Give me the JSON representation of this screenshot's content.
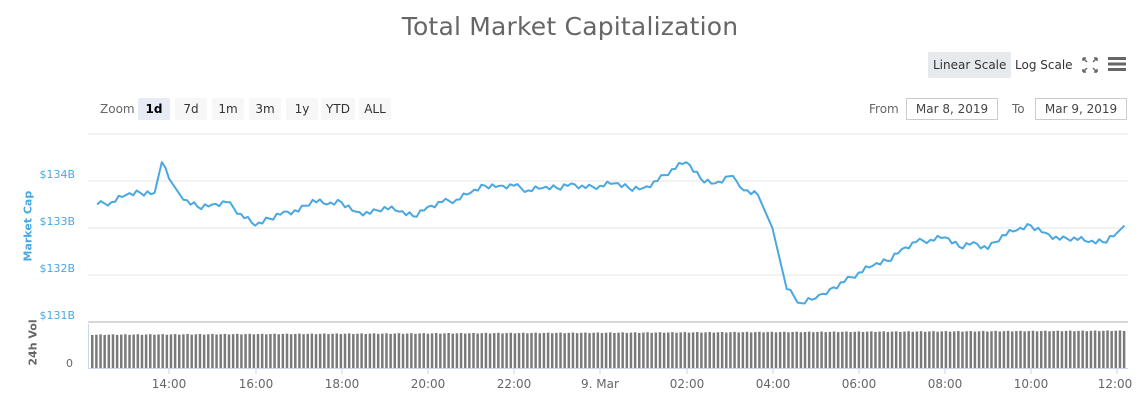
{
  "title": "Total Market Capitalization",
  "toolbar": {
    "linear_scale": "Linear Scale",
    "log_scale": "Log Scale",
    "active_scale": "Linear Scale",
    "icons": [
      "fullscreen-icon",
      "menu-icon"
    ]
  },
  "range_selector": {
    "zoom_label": "Zoom",
    "buttons": [
      "1d",
      "7d",
      "1m",
      "3m",
      "1y",
      "YTD",
      "ALL"
    ],
    "active": "1d",
    "from_label": "From",
    "from_value": "Mar 8, 2019",
    "to_label": "To",
    "to_value": "Mar 9, 2019"
  },
  "colors": {
    "line": "#4aa8e0",
    "volume_bars": "#7a7a7a",
    "grid": "#e6e6e6",
    "axis_label_market_cap": "#4aa8e0"
  },
  "chart_data": {
    "type": "line",
    "title": "Total Market Capitalization",
    "xlabel": "",
    "ylabel": "Market Cap",
    "secondary_ylabel": "24h Vol",
    "y_ticks": [
      "$131B",
      "$132B",
      "$133B",
      "$134B"
    ],
    "ylim": [
      131,
      134.6
    ],
    "y_unit": "USD billions",
    "x_ticks": [
      "14:00",
      "16:00",
      "18:00",
      "20:00",
      "22:00",
      "9. Mar",
      "02:00",
      "04:00",
      "06:00",
      "08:00",
      "10:00",
      "12:00"
    ],
    "volume_y_ticks": [
      "0"
    ],
    "grid": true,
    "legend": "none",
    "series": [
      {
        "name": "Market Cap",
        "x": [
          "12:20",
          "12:40",
          "13:00",
          "13:20",
          "13:40",
          "13:50",
          "14:00",
          "14:20",
          "14:40",
          "15:00",
          "15:20",
          "15:40",
          "16:00",
          "16:20",
          "16:40",
          "17:00",
          "17:20",
          "17:40",
          "18:00",
          "18:20",
          "18:40",
          "19:00",
          "19:20",
          "19:40",
          "20:00",
          "20:20",
          "20:40",
          "21:00",
          "21:20",
          "21:40",
          "22:00",
          "22:20",
          "22:40",
          "23:00",
          "23:20",
          "23:40",
          "00:00",
          "00:20",
          "00:40",
          "01:00",
          "01:20",
          "01:40",
          "02:00",
          "02:20",
          "02:40",
          "03:00",
          "03:10",
          "03:20",
          "03:40",
          "04:00",
          "04:20",
          "04:40",
          "05:00",
          "05:10",
          "05:20",
          "05:40",
          "06:00",
          "06:20",
          "06:40",
          "07:00",
          "07:20",
          "07:40",
          "08:00",
          "08:20",
          "08:40",
          "09:00",
          "09:20",
          "09:40",
          "10:00",
          "10:20",
          "10:40",
          "11:00",
          "11:20",
          "11:40",
          "12:00",
          "12:10"
        ],
        "values": [
          133.5,
          133.55,
          133.7,
          133.75,
          133.75,
          134.4,
          134.05,
          133.6,
          133.45,
          133.5,
          133.55,
          133.3,
          133.05,
          133.2,
          133.35,
          133.35,
          133.6,
          133.5,
          133.55,
          133.35,
          133.3,
          133.45,
          133.35,
          133.25,
          133.45,
          133.55,
          133.6,
          133.75,
          133.9,
          133.9,
          133.9,
          133.8,
          133.85,
          133.85,
          133.95,
          133.85,
          133.9,
          133.95,
          133.85,
          133.85,
          134.0,
          134.25,
          134.4,
          134.05,
          133.95,
          134.1,
          134.0,
          133.8,
          133.7,
          133.0,
          131.7,
          131.4,
          131.5,
          131.6,
          131.7,
          131.85,
          132.05,
          132.2,
          132.3,
          132.55,
          132.7,
          132.75,
          132.8,
          132.6,
          132.7,
          132.55,
          132.85,
          132.95,
          133.05,
          132.9,
          132.75,
          132.8,
          132.7,
          132.7,
          132.9,
          133.05
        ],
        "unit": "USD billions"
      },
      {
        "name": "24h Vol",
        "type": "bar",
        "note": "~250 dense bars, nearly uniform height, slightly taller toward the right",
        "relative_heights": [
          0.88,
          0.9,
          0.9,
          0.91,
          0.93,
          0.95,
          0.95
        ]
      }
    ]
  }
}
